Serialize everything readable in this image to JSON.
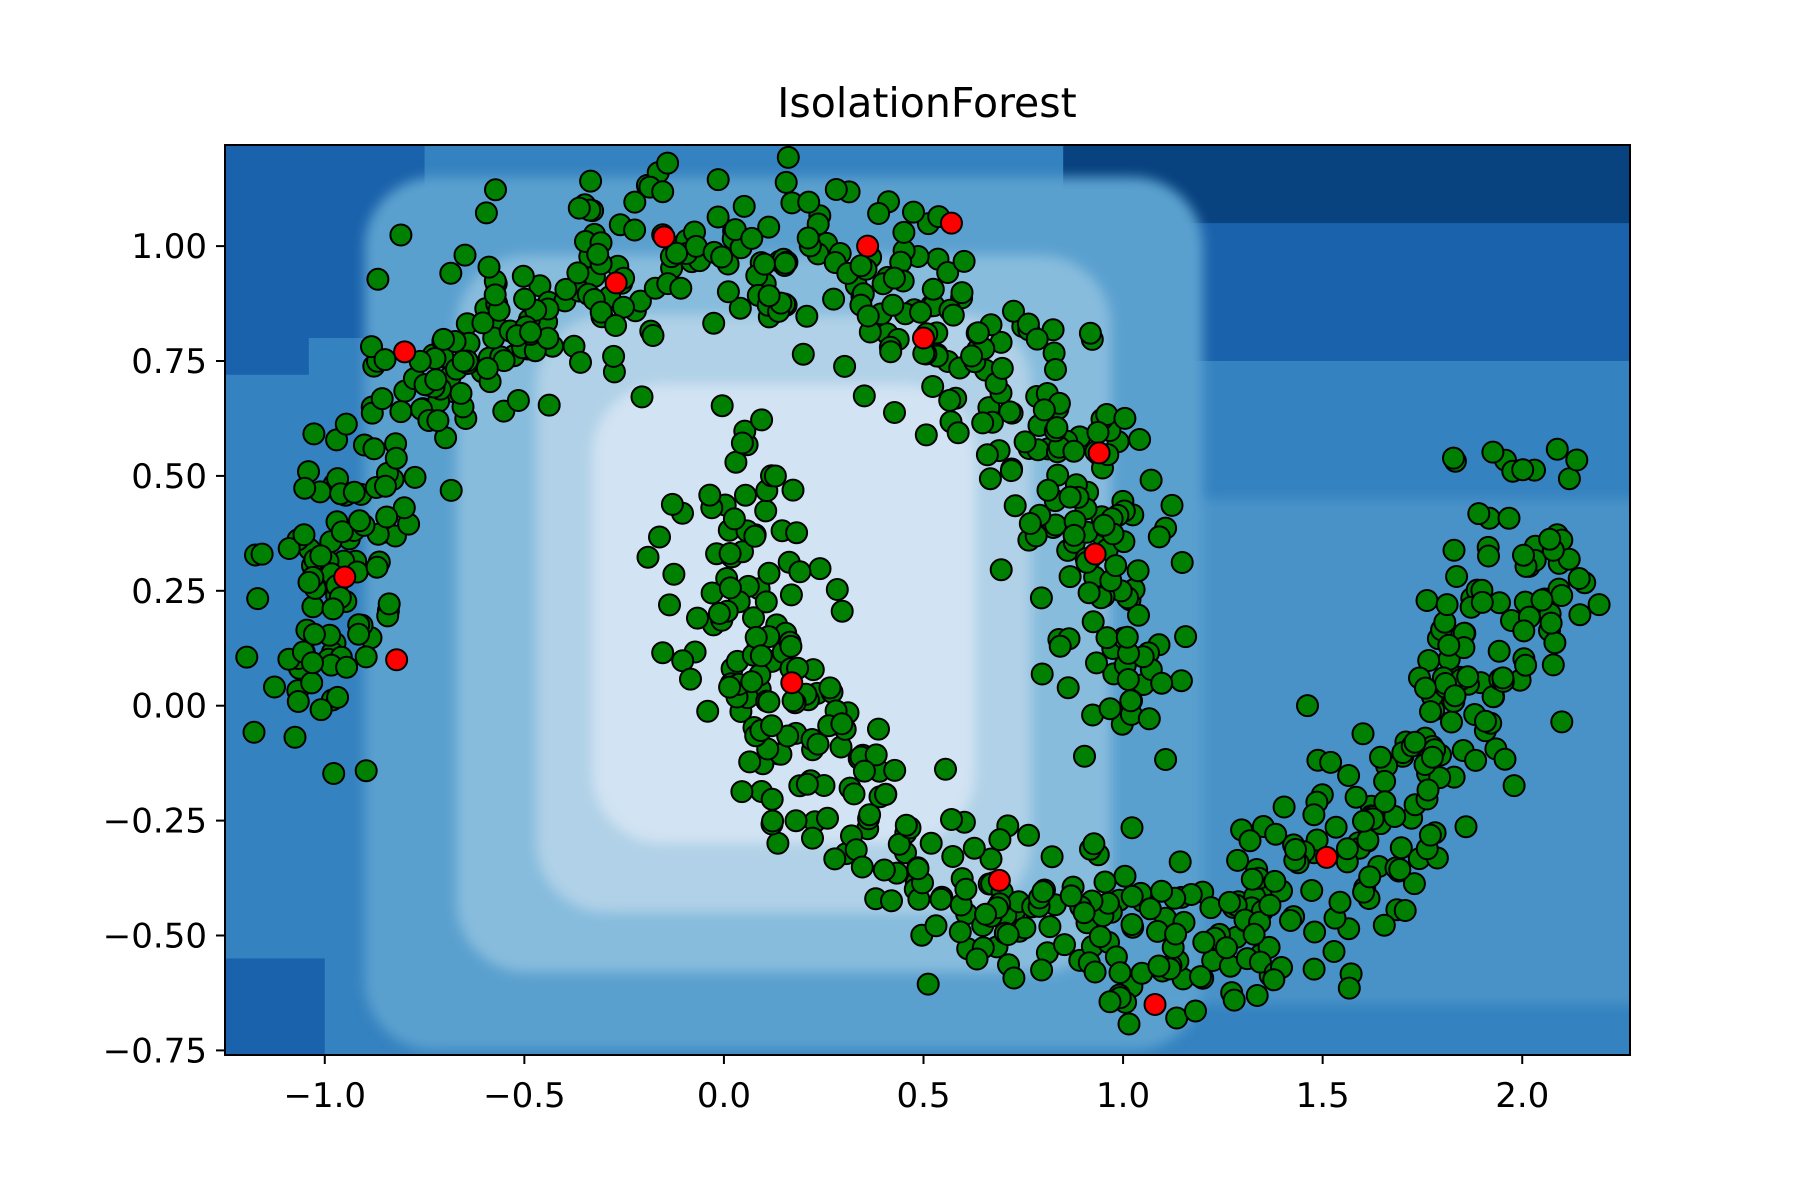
{
  "chart_data": {
    "type": "scatter",
    "title": "IsolationForest",
    "xlabel": "",
    "ylabel": "",
    "xlim": [
      -1.25,
      2.27
    ],
    "ylim": [
      -0.76,
      1.22
    ],
    "grid": false,
    "x_ticks": [
      -1.0,
      -0.5,
      0.0,
      0.5,
      1.0,
      1.5,
      2.0
    ],
    "x_tick_labels": [
      "−1.0",
      "−0.5",
      "0.0",
      "0.5",
      "1.0",
      "1.5",
      "2.0"
    ],
    "y_ticks": [
      -0.75,
      -0.5,
      -0.25,
      0.0,
      0.25,
      0.5,
      0.75,
      1.0
    ],
    "y_tick_labels": [
      "−0.75",
      "−0.50",
      "−0.25",
      "0.00",
      "0.25",
      "0.50",
      "0.75",
      "1.00"
    ],
    "background": {
      "kind": "anomaly-score contour",
      "colormap": "Blues_r",
      "colors": [
        "#d2e3f3",
        "#b0d1e7",
        "#87bcdd",
        "#5aa0cf",
        "#3582c0",
        "#1a62ab",
        "#08427f"
      ]
    },
    "series": [
      {
        "marker_color": "#008000",
        "edge_color": "#000000",
        "description_of_distribution": "two interleaving moons",
        "outer_moon": {
          "center": [
            0.0,
            0.0
          ],
          "radius": 1.0,
          "angle_range_deg": [
            0,
            180
          ],
          "noise": 0.1
        },
        "inner_moon": {
          "center": [
            1.0,
            0.5
          ],
          "radius": 1.0,
          "angle_range_deg": [
            180,
            360
          ],
          "noise": 0.1
        },
        "approx_count": 1000
      },
      {
        "marker_color": "#ff0000",
        "edge_color": "#000000",
        "points": [
          [
            -0.15,
            1.02
          ],
          [
            0.36,
            1.0
          ],
          [
            0.57,
            1.05
          ],
          [
            -0.27,
            0.92
          ],
          [
            -0.8,
            0.77
          ],
          [
            0.5,
            0.8
          ],
          [
            0.94,
            0.55
          ],
          [
            0.93,
            0.33
          ],
          [
            -0.95,
            0.28
          ],
          [
            -0.82,
            0.1
          ],
          [
            0.17,
            0.05
          ],
          [
            0.69,
            -0.38
          ],
          [
            1.51,
            -0.33
          ],
          [
            1.08,
            -0.65
          ]
        ]
      }
    ]
  }
}
